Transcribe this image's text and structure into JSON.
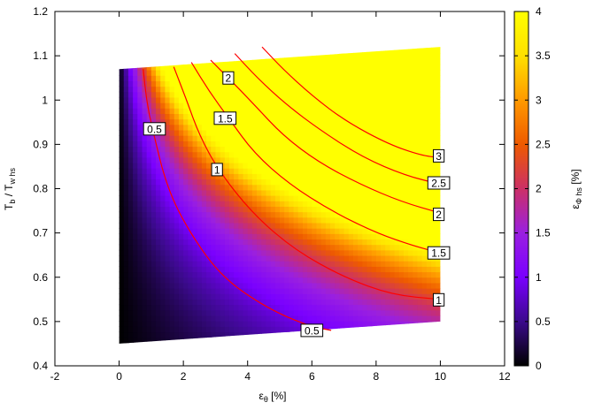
{
  "chart_data": {
    "type": "heatmap",
    "title": "",
    "xlabel_main": "ε",
    "xlabel_sub": "θ",
    "xlabel_unit": " [%]",
    "ylabel_main": "T",
    "ylabel_sub1": "b",
    "ylabel_mid": " / T",
    "ylabel_sub2": "w hs",
    "cblabel_main": "ε",
    "cblabel_sub": "Φ hs",
    "cblabel_unit": " [%]",
    "xlim": [
      -2,
      12
    ],
    "ylim": [
      0.4,
      1.2
    ],
    "zlim": [
      0,
      4
    ],
    "x_ticks": [
      "-2",
      "0",
      "2",
      "4",
      "6",
      "8",
      "10",
      "12"
    ],
    "y_ticks": [
      "0.4",
      "0.5",
      "0.6",
      "0.7",
      "0.8",
      "0.9",
      "1",
      "1.1",
      "1.2"
    ],
    "cb_ticks": [
      "0",
      "0.5",
      "1",
      "1.5",
      "2",
      "2.5",
      "3",
      "3.5",
      "4"
    ],
    "domain": {
      "x_range": [
        0,
        10
      ],
      "y_bottom_at_x0": 0.45,
      "y_bottom_at_x10": 0.5,
      "y_top_at_x0": 1.07,
      "y_top_at_x10": 1.12
    },
    "grid": false,
    "contours": [
      {
        "level": 0.5,
        "label": "0.5",
        "points": [
          [
            0.75,
            1.07
          ],
          [
            0.85,
            1.0
          ],
          [
            1.05,
            0.93
          ],
          [
            1.5,
            0.8
          ],
          [
            2.2,
            0.7
          ],
          [
            3.2,
            0.6
          ],
          [
            4.6,
            0.53
          ],
          [
            5.9,
            0.49
          ],
          [
            6.6,
            0.48
          ]
        ]
      },
      {
        "level": 1,
        "label": "1",
        "points": [
          [
            1.7,
            1.075
          ],
          [
            2.1,
            1.0
          ],
          [
            2.5,
            0.92
          ],
          [
            3.1,
            0.84
          ],
          [
            4.2,
            0.74
          ],
          [
            5.5,
            0.66
          ],
          [
            7.0,
            0.6
          ],
          [
            8.5,
            0.56
          ],
          [
            10.0,
            0.55
          ]
        ]
      },
      {
        "level": 1.5,
        "label": "1.5",
        "points": [
          [
            2.25,
            1.085
          ],
          [
            2.8,
            1.02
          ],
          [
            3.4,
            0.96
          ],
          [
            4.2,
            0.88
          ],
          [
            5.3,
            0.81
          ],
          [
            6.6,
            0.75
          ],
          [
            8.0,
            0.7
          ],
          [
            9.2,
            0.67
          ],
          [
            10.0,
            0.655
          ]
        ]
      },
      {
        "level": 2,
        "label": "2",
        "points": [
          [
            2.85,
            1.09
          ],
          [
            3.4,
            1.05
          ],
          [
            4.2,
            0.99
          ],
          [
            5.1,
            0.92
          ],
          [
            6.2,
            0.86
          ],
          [
            7.5,
            0.81
          ],
          [
            8.8,
            0.77
          ],
          [
            10.0,
            0.745
          ]
        ]
      },
      {
        "level": 2.5,
        "label": "2.5",
        "points": [
          [
            3.6,
            1.105
          ],
          [
            4.3,
            1.05
          ],
          [
            5.2,
            0.99
          ],
          [
            6.3,
            0.93
          ],
          [
            7.6,
            0.87
          ],
          [
            8.9,
            0.83
          ],
          [
            10.0,
            0.81
          ]
        ]
      },
      {
        "level": 3,
        "label": "3",
        "points": [
          [
            4.45,
            1.12
          ],
          [
            5.1,
            1.07
          ],
          [
            6.0,
            1.01
          ],
          [
            7.1,
            0.95
          ],
          [
            8.4,
            0.9
          ],
          [
            9.4,
            0.875
          ],
          [
            10.0,
            0.87
          ]
        ]
      }
    ],
    "contour_labels": [
      {
        "text": "0.5",
        "x": 1.1,
        "y": 0.935
      },
      {
        "text": "1",
        "x": 3.05,
        "y": 0.843
      },
      {
        "text": "1.5",
        "x": 3.3,
        "y": 0.959
      },
      {
        "text": "2",
        "x": 3.4,
        "y": 1.05
      },
      {
        "text": "0.5",
        "x": 6.0,
        "y": 0.48
      },
      {
        "text": "1",
        "x": 9.95,
        "y": 0.549
      },
      {
        "text": "1.5",
        "x": 9.95,
        "y": 0.655
      },
      {
        "text": "2",
        "x": 9.95,
        "y": 0.742
      },
      {
        "text": "2.5",
        "x": 9.95,
        "y": 0.813
      },
      {
        "text": "3",
        "x": 9.95,
        "y": 0.874
      }
    ],
    "colors": {
      "contour": "#ff0000",
      "palette": [
        "#000000",
        "#3b0a8c",
        "#7a00ff",
        "#9a20e0",
        "#cc3066",
        "#ee5a00",
        "#ff9a00",
        "#ffe000",
        "#ffff00"
      ]
    }
  }
}
